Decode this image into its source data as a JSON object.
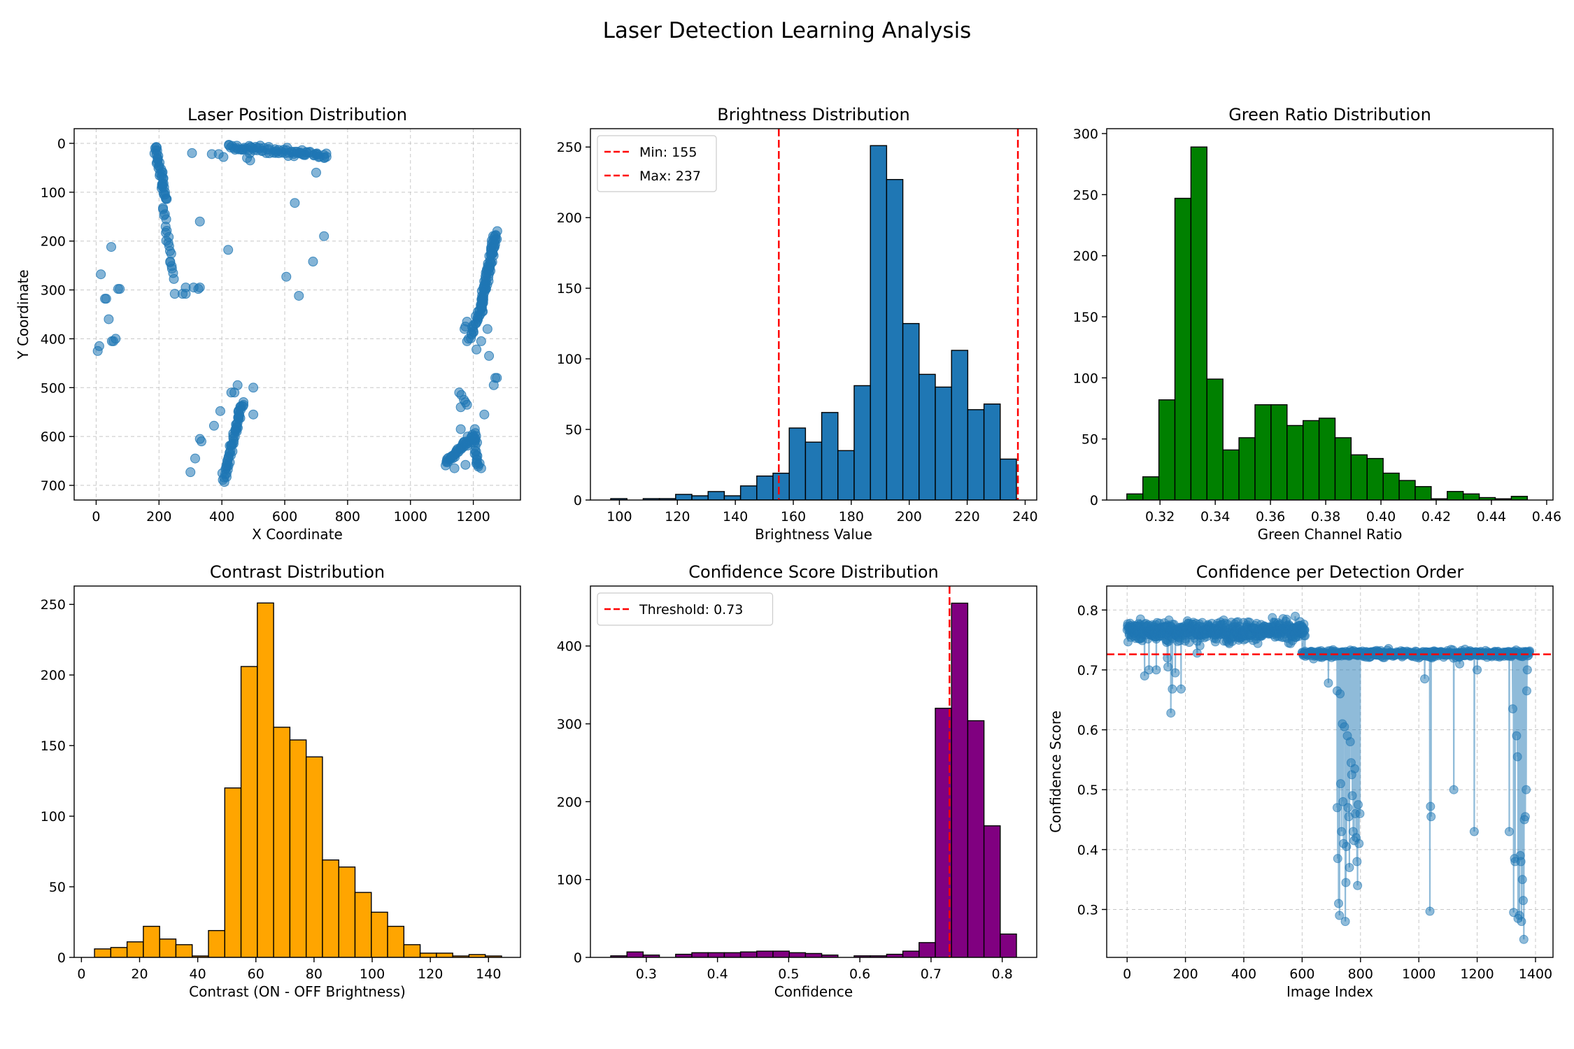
{
  "figure": {
    "title": "Laser Detection Learning Analysis"
  },
  "colors": {
    "blue": "#1f77b4",
    "green": "#008000",
    "orange": "#ffa500",
    "purple": "#800080",
    "red": "#ff0000",
    "grid": "#b0b0b0"
  },
  "chart_data": [
    {
      "id": "pos",
      "type": "scatter",
      "title": "Laser Position Distribution",
      "xlabel": "X Coordinate",
      "ylabel": "Y Coordinate",
      "xlim": [
        -70,
        1350
      ],
      "ylim": [
        730,
        -30
      ],
      "y_inverted": true,
      "xticks": [
        0,
        200,
        400,
        600,
        800,
        1000,
        1200
      ],
      "yticks": [
        0,
        100,
        200,
        300,
        400,
        500,
        600,
        700
      ],
      "grid": true,
      "color": "#1f77b4",
      "alpha": 0.55,
      "clusters": [
        {
          "desc": "top-left vertical trail",
          "from": [
            188,
            5
          ],
          "to": [
            222,
            115
          ],
          "n": 40,
          "jitter": 6
        },
        {
          "desc": "top horizontal trail",
          "from": [
            420,
            8
          ],
          "to": [
            735,
            25
          ],
          "n": 80,
          "jitter": 6
        },
        {
          "desc": "right vertical trail",
          "from": [
            1272,
            185
          ],
          "to": [
            1220,
            345
          ],
          "n": 90,
          "jitter": 7
        },
        {
          "desc": "right mid trail",
          "from": [
            1225,
            335
          ],
          "to": [
            1190,
            395
          ],
          "n": 20,
          "jitter": 6
        },
        {
          "desc": "bottom diagonal trail",
          "from": [
            465,
            530
          ],
          "to": [
            405,
            690
          ],
          "n": 60,
          "jitter": 6
        },
        {
          "desc": "bottom-right trail",
          "from": [
            1110,
            655
          ],
          "to": [
            1200,
            600
          ],
          "n": 45,
          "jitter": 5
        },
        {
          "desc": "bottom-right column",
          "from": [
            1205,
            590
          ],
          "to": [
            1212,
            665
          ],
          "n": 20,
          "jitter": 4
        },
        {
          "desc": "left trail",
          "from": [
            215,
            130
          ],
          "to": [
            245,
            275
          ],
          "n": 20,
          "jitter": 5
        }
      ],
      "points": [
        [
          5,
          425
        ],
        [
          10,
          415
        ],
        [
          15,
          268
        ],
        [
          28,
          318
        ],
        [
          32,
          318
        ],
        [
          40,
          360
        ],
        [
          48,
          212
        ],
        [
          50,
          405
        ],
        [
          55,
          405
        ],
        [
          62,
          400
        ],
        [
          70,
          298
        ],
        [
          75,
          298
        ],
        [
          305,
          20
        ],
        [
          330,
          160
        ],
        [
          330,
          295
        ],
        [
          325,
          298
        ],
        [
          310,
          295
        ],
        [
          285,
          295
        ],
        [
          285,
          308
        ],
        [
          275,
          308
        ],
        [
          250,
          308
        ],
        [
          300,
          673
        ],
        [
          315,
          645
        ],
        [
          330,
          605
        ],
        [
          335,
          610
        ],
        [
          375,
          578
        ],
        [
          395,
          548
        ],
        [
          420,
          218
        ],
        [
          368,
          22
        ],
        [
          390,
          22
        ],
        [
          405,
          28
        ],
        [
          480,
          30
        ],
        [
          490,
          35
        ],
        [
          430,
          510
        ],
        [
          440,
          510
        ],
        [
          455,
          555
        ],
        [
          460,
          545
        ],
        [
          450,
          495
        ],
        [
          500,
          500
        ],
        [
          500,
          555
        ],
        [
          605,
          273
        ],
        [
          632,
          122
        ],
        [
          645,
          312
        ],
        [
          655,
          14
        ],
        [
          690,
          242
        ],
        [
          700,
          60
        ],
        [
          725,
          190
        ],
        [
          1140,
          665
        ],
        [
          1175,
          658
        ],
        [
          1182,
          600
        ],
        [
          1195,
          612
        ],
        [
          1235,
          555
        ],
        [
          1250,
          435
        ],
        [
          1265,
          495
        ],
        [
          1270,
          480
        ],
        [
          1275,
          480
        ],
        [
          1210,
          422
        ],
        [
          1225,
          405
        ],
        [
          1245,
          380
        ],
        [
          1220,
          655
        ],
        [
          1225,
          665
        ],
        [
          1160,
          540
        ],
        [
          1160,
          585
        ],
        [
          1162,
          515
        ],
        [
          1155,
          510
        ],
        [
          1170,
          525
        ],
        [
          1175,
          530
        ],
        [
          1180,
          535
        ],
        [
          1180,
          365
        ],
        [
          1175,
          375
        ],
        [
          1172,
          380
        ],
        [
          1185,
          400
        ],
        [
          1180,
          405
        ]
      ]
    },
    {
      "id": "bright",
      "type": "bar",
      "subtype": "histogram",
      "title": "Brightness Distribution",
      "xlabel": "Brightness Value",
      "ylabel": "",
      "bin_start": 97,
      "bin_width": 5.6,
      "values": [
        1,
        0,
        1,
        1,
        4,
        3,
        6,
        3,
        10,
        17,
        19,
        51,
        41,
        62,
        35,
        81,
        251,
        227,
        125,
        89,
        80,
        106,
        64,
        68,
        29
      ],
      "xlim": [
        90,
        244
      ],
      "ylim": [
        0,
        263
      ],
      "xticks": [
        100,
        120,
        140,
        160,
        180,
        200,
        220,
        240
      ],
      "yticks": [
        0,
        50,
        100,
        150,
        200,
        250
      ],
      "color": "#1f77b4",
      "vlines": [
        {
          "x": 155,
          "label": "Min: 155",
          "color": "#ff0000"
        },
        {
          "x": 237.5,
          "label": "Max: 237",
          "color": "#ff0000"
        }
      ],
      "legend": "upper left",
      "grid": false
    },
    {
      "id": "green",
      "type": "bar",
      "subtype": "histogram",
      "title": "Green Ratio Distribution",
      "xlabel": "Green Channel Ratio",
      "ylabel": "",
      "bin_start": 0.308,
      "bin_width": 0.0058,
      "values": [
        5,
        19,
        82,
        247,
        289,
        99,
        41,
        51,
        78,
        78,
        61,
        65,
        67,
        51,
        37,
        34,
        22,
        16,
        11,
        1,
        7,
        5,
        2,
        1,
        3
      ],
      "xlim": [
        0.3007,
        0.4623
      ],
      "ylim": [
        0,
        304
      ],
      "xticks": [
        0.32,
        0.34,
        0.36,
        0.38,
        0.4,
        0.42,
        0.44,
        0.46
      ],
      "xtick_labels": [
        "0.32",
        "0.34",
        "0.36",
        "0.38",
        "0.40",
        "0.42",
        "0.44",
        "0.46"
      ],
      "yticks": [
        0,
        50,
        100,
        150,
        200,
        250,
        300
      ],
      "color": "#008000",
      "grid": false
    },
    {
      "id": "contrast",
      "type": "bar",
      "subtype": "histogram",
      "title": "Contrast Distribution",
      "xlabel": "Contrast (ON - OFF Brightness)",
      "ylabel": "",
      "bin_start": 4.5,
      "bin_width": 5.6,
      "values": [
        6,
        7,
        11,
        22,
        13,
        9,
        1,
        19,
        120,
        206,
        251,
        163,
        154,
        142,
        69,
        64,
        46,
        32,
        22,
        9,
        3,
        3,
        1,
        2,
        1
      ],
      "xlim": [
        -2.5,
        151
      ],
      "ylim": [
        0,
        263
      ],
      "xticks": [
        0,
        20,
        40,
        60,
        80,
        100,
        120,
        140
      ],
      "yticks": [
        0,
        50,
        100,
        150,
        200,
        250
      ],
      "color": "#ffa500",
      "grid": false
    },
    {
      "id": "conf",
      "type": "bar",
      "subtype": "histogram",
      "title": "Confidence Score Distribution",
      "xlabel": "Confidence",
      "ylabel": "",
      "bin_start": 0.25,
      "bin_width": 0.0228,
      "values": [
        2,
        7,
        3,
        0,
        4,
        6,
        6,
        6,
        7,
        8,
        8,
        6,
        5,
        3,
        0,
        2,
        2,
        4,
        8,
        19,
        320,
        455,
        304,
        169,
        30
      ],
      "xlim": [
        0.2215,
        0.8485
      ],
      "ylim": [
        0,
        477
      ],
      "xticks": [
        0.3,
        0.4,
        0.5,
        0.6,
        0.7,
        0.8
      ],
      "xtick_labels": [
        "0.3",
        "0.4",
        "0.5",
        "0.6",
        "0.7",
        "0.8"
      ],
      "yticks": [
        0,
        100,
        200,
        300,
        400
      ],
      "color": "#800080",
      "vlines": [
        {
          "x": 0.726,
          "label": "Threshold: 0.73",
          "color": "#ff0000"
        }
      ],
      "legend": "upper left",
      "grid": false
    },
    {
      "id": "order",
      "type": "line",
      "title": "Confidence per Detection Order",
      "xlabel": "Image Index",
      "ylabel": "Confidence Score",
      "xlim": [
        -70,
        1460
      ],
      "ylim": [
        0.22,
        0.84
      ],
      "xticks": [
        0,
        200,
        400,
        600,
        800,
        1000,
        1200,
        1400
      ],
      "yticks": [
        0.3,
        0.4,
        0.5,
        0.6,
        0.7,
        0.8
      ],
      "ytick_labels": [
        "0.3",
        "0.4",
        "0.5",
        "0.6",
        "0.7",
        "0.8"
      ],
      "hline": {
        "y": 0.726,
        "color": "#ff0000"
      },
      "grid": true,
      "color": "#1f77b4",
      "segments": [
        {
          "x_from": 0,
          "x_to": 610,
          "mean": 0.765,
          "spread": 0.022,
          "n": 600
        },
        {
          "x_from": 600,
          "x_to": 1380,
          "mean": 0.727,
          "spread": 0.008,
          "n": 620
        }
      ],
      "dips": [
        [
          60,
          0.69
        ],
        [
          75,
          0.7
        ],
        [
          100,
          0.7
        ],
        [
          138,
          0.72
        ],
        [
          140,
          0.705
        ],
        [
          150,
          0.628
        ],
        [
          155,
          0.668
        ],
        [
          165,
          0.695
        ],
        [
          185,
          0.668
        ],
        [
          240,
          0.728
        ],
        [
          690,
          0.678
        ],
        [
          720,
          0.665
        ],
        [
          720,
          0.47
        ],
        [
          722,
          0.385
        ],
        [
          725,
          0.31
        ],
        [
          728,
          0.29
        ],
        [
          730,
          0.66
        ],
        [
          732,
          0.51
        ],
        [
          735,
          0.43
        ],
        [
          738,
          0.61
        ],
        [
          740,
          0.48
        ],
        [
          742,
          0.41
        ],
        [
          745,
          0.605
        ],
        [
          748,
          0.28
        ],
        [
          750,
          0.345
        ],
        [
          752,
          0.405
        ],
        [
          755,
          0.59
        ],
        [
          757,
          0.47
        ],
        [
          760,
          0.455
        ],
        [
          762,
          0.37
        ],
        [
          765,
          0.58
        ],
        [
          768,
          0.545
        ],
        [
          770,
          0.525
        ],
        [
          772,
          0.49
        ],
        [
          775,
          0.43
        ],
        [
          778,
          0.415
        ],
        [
          780,
          0.535
        ],
        [
          782,
          0.46
        ],
        [
          785,
          0.42
        ],
        [
          788,
          0.38
        ],
        [
          790,
          0.34
        ],
        [
          792,
          0.475
        ],
        [
          795,
          0.41
        ],
        [
          798,
          0.46
        ],
        [
          1000,
          0.72
        ],
        [
          1020,
          0.685
        ],
        [
          1038,
          0.297
        ],
        [
          1040,
          0.472
        ],
        [
          1042,
          0.455
        ],
        [
          1045,
          0.72
        ],
        [
          1120,
          0.5
        ],
        [
          1140,
          0.71
        ],
        [
          1190,
          0.43
        ],
        [
          1200,
          0.7
        ],
        [
          1310,
          0.43
        ],
        [
          1322,
          0.635
        ],
        [
          1325,
          0.295
        ],
        [
          1328,
          0.385
        ],
        [
          1330,
          0.38
        ],
        [
          1335,
          0.59
        ],
        [
          1338,
          0.555
        ],
        [
          1340,
          0.285
        ],
        [
          1345,
          0.29
        ],
        [
          1348,
          0.39
        ],
        [
          1350,
          0.38
        ],
        [
          1352,
          0.28
        ],
        [
          1355,
          0.35
        ],
        [
          1358,
          0.315
        ],
        [
          1360,
          0.25
        ],
        [
          1362,
          0.45
        ],
        [
          1365,
          0.455
        ],
        [
          1368,
          0.5
        ],
        [
          1370,
          0.665
        ],
        [
          1372,
          0.7
        ]
      ]
    }
  ]
}
